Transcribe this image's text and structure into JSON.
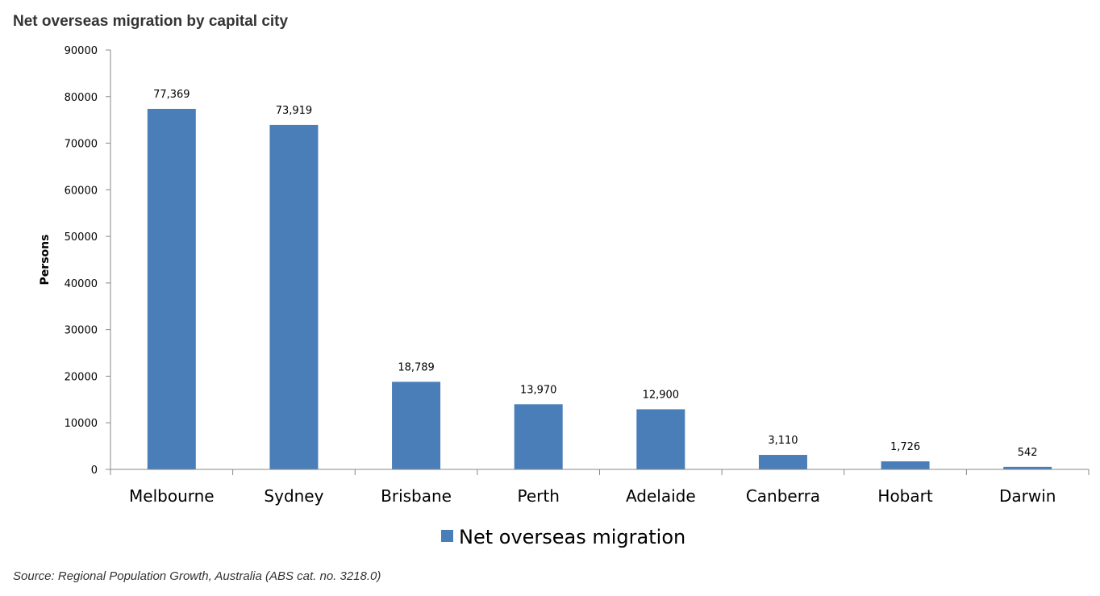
{
  "colors": {
    "bar": "#4a7eb8",
    "axis": "#888888"
  },
  "chart_data": {
    "type": "bar",
    "title": "Net overseas migration by capital city",
    "ylabel": "Persons",
    "xlabel": "",
    "categories": [
      "Melbourne",
      "Sydney",
      "Brisbane",
      "Perth",
      "Adelaide",
      "Canberra",
      "Hobart",
      "Darwin"
    ],
    "series": [
      {
        "name": "Net overseas migration",
        "values": [
          77369,
          73919,
          18789,
          13970,
          12900,
          3110,
          1726,
          542
        ],
        "labels": [
          "77,369",
          "73,919",
          "18,789",
          "13,970",
          "12,900",
          "3,110",
          "1,726",
          "542"
        ]
      }
    ],
    "ylim": [
      0,
      90000
    ],
    "yticks": [
      "0",
      "10000",
      "20000",
      "30000",
      "40000",
      "50000",
      "60000",
      "70000",
      "80000",
      "90000"
    ],
    "grid": false,
    "legend": "bottom"
  },
  "footer": {
    "source": "Source: Regional Population Growth, Australia (ABS cat. no. 3218.0)"
  }
}
